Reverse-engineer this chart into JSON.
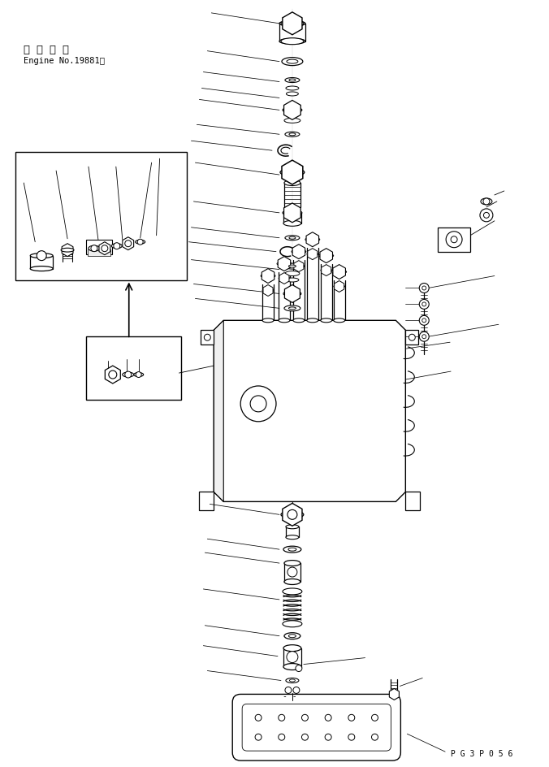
{
  "background_color": "#ffffff",
  "line_color": "#000000",
  "text_color": "#000000",
  "title_jp": "適 用 号 機",
  "title_en": "Engine No.19881～",
  "part_code": "P G 3 P 0 5 6",
  "fig_width": 6.76,
  "fig_height": 9.45,
  "dpi": 100
}
